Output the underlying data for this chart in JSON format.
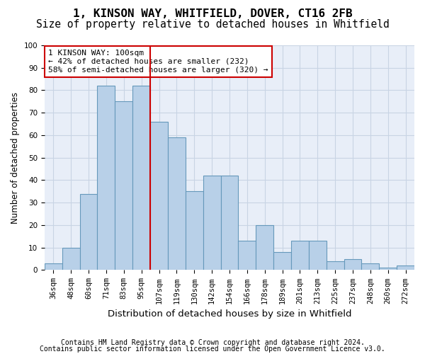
{
  "title": "1, KINSON WAY, WHITFIELD, DOVER, CT16 2FB",
  "subtitle": "Size of property relative to detached houses in Whitfield",
  "xlabel": "Distribution of detached houses by size in Whitfield",
  "ylabel": "Number of detached properties",
  "categories": [
    "36sqm",
    "48sqm",
    "60sqm",
    "71sqm",
    "83sqm",
    "95sqm",
    "107sqm",
    "119sqm",
    "130sqm",
    "142sqm",
    "154sqm",
    "166sqm",
    "178sqm",
    "189sqm",
    "201sqm",
    "213sqm",
    "225sqm",
    "237sqm",
    "248sqm",
    "260sqm",
    "272sqm"
  ],
  "values": [
    3,
    10,
    34,
    82,
    75,
    82,
    66,
    59,
    35,
    42,
    42,
    13,
    20,
    8,
    13,
    13,
    4,
    5,
    3,
    1,
    2
  ],
  "bar_color": "#b8d0e8",
  "bar_edge_color": "#6699bb",
  "grid_color": "#c8d4e4",
  "bg_color": "#e8eef8",
  "vline_x": 5.5,
  "vline_color": "#cc0000",
  "annotation_text": "1 KINSON WAY: 100sqm\n← 42% of detached houses are smaller (232)\n58% of semi-detached houses are larger (320) →",
  "annotation_box_color": "#ffffff",
  "annotation_box_edge": "#cc0000",
  "annotation_fontsize": 8.0,
  "ylim": [
    0,
    100
  ],
  "yticks": [
    0,
    10,
    20,
    30,
    40,
    50,
    60,
    70,
    80,
    90,
    100
  ],
  "footnote1": "Contains HM Land Registry data © Crown copyright and database right 2024.",
  "footnote2": "Contains public sector information licensed under the Open Government Licence v3.0.",
  "title_fontsize": 11.5,
  "subtitle_fontsize": 10.5,
  "xlabel_fontsize": 9.5,
  "ylabel_fontsize": 8.5,
  "tick_fontsize": 7.5
}
